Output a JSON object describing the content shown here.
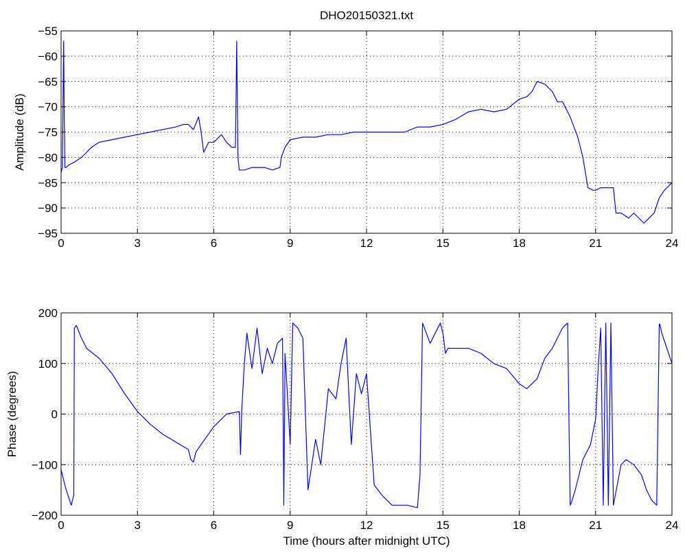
{
  "chart_data": [
    {
      "type": "line",
      "title": "DHO20150321.txt",
      "xlabel": "",
      "ylabel": "Amplitude (dB)",
      "xlim": [
        0,
        24
      ],
      "ylim": [
        -95,
        -55
      ],
      "xticks": [
        0,
        3,
        6,
        9,
        12,
        15,
        18,
        21,
        24
      ],
      "yticks": [
        -55,
        -60,
        -65,
        -70,
        -75,
        -80,
        -85,
        -90,
        -95
      ],
      "grid": true,
      "color": "#0000ff",
      "x": [
        0,
        0.05,
        0.1,
        0.12,
        0.15,
        0.2,
        0.3,
        0.5,
        0.8,
        1.0,
        1.2,
        1.5,
        2.0,
        2.5,
        3.0,
        3.5,
        4.0,
        4.5,
        4.8,
        5.0,
        5.2,
        5.4,
        5.5,
        5.6,
        5.8,
        6.0,
        6.3,
        6.5,
        6.7,
        6.85,
        6.9,
        6.95,
        7.0,
        7.2,
        7.5,
        8.0,
        8.3,
        8.6,
        8.65,
        8.8,
        9.0,
        9.5,
        10.0,
        10.5,
        11.0,
        11.5,
        12.0,
        12.5,
        13.0,
        13.5,
        14.0,
        14.5,
        15.0,
        15.5,
        16.0,
        16.5,
        17.0,
        17.5,
        18.0,
        18.3,
        18.5,
        18.7,
        19.0,
        19.3,
        19.5,
        19.7,
        20.0,
        20.3,
        20.5,
        20.7,
        20.9,
        21.0,
        21.2,
        21.5,
        21.7,
        21.8,
        22.0,
        22.3,
        22.5,
        22.7,
        22.9,
        23.1,
        23.3,
        23.5,
        23.7,
        24.0
      ],
      "y": [
        -83,
        -82,
        -57,
        -70,
        -82,
        -82,
        -81.5,
        -81,
        -80,
        -79,
        -78,
        -77,
        -76.5,
        -76,
        -75.5,
        -75,
        -74.5,
        -74,
        -73.5,
        -73.5,
        -74.5,
        -72,
        -75,
        -79,
        -77,
        -77,
        -75.5,
        -77,
        -78,
        -78,
        -57,
        -80,
        -82.5,
        -82.5,
        -82,
        -82,
        -82.5,
        -82,
        -80,
        -78,
        -76.5,
        -76,
        -76,
        -75.5,
        -75.5,
        -75,
        -75,
        -75,
        -75,
        -75,
        -74,
        -74,
        -73.5,
        -72.5,
        -71,
        -70.5,
        -71,
        -70.5,
        -68.5,
        -68,
        -67,
        -65,
        -65.5,
        -67,
        -69,
        -69,
        -72,
        -76,
        -80,
        -86,
        -86.5,
        -86.5,
        -86,
        -86,
        -86,
        -91,
        -91,
        -92,
        -91,
        -92,
        -93,
        -92,
        -91,
        -88,
        -86.5,
        -85
      ]
    },
    {
      "type": "line",
      "title": "",
      "xlabel": "Time (hours after midnight UTC)",
      "ylabel": "Phase (degrees)",
      "xlim": [
        0,
        24
      ],
      "ylim": [
        -200,
        200
      ],
      "xticks": [
        0,
        3,
        6,
        9,
        12,
        15,
        18,
        21,
        24
      ],
      "yticks": [
        200,
        100,
        0,
        -100,
        -200
      ],
      "grid": true,
      "color": "#0000ff",
      "x": [
        0,
        0.1,
        0.2,
        0.3,
        0.4,
        0.5,
        0.52,
        0.6,
        0.8,
        1.0,
        1.5,
        2.0,
        2.5,
        3.0,
        3.5,
        4.0,
        4.5,
        5.0,
        5.1,
        5.2,
        5.3,
        5.5,
        6.0,
        6.5,
        7.0,
        7.05,
        7.1,
        7.2,
        7.3,
        7.5,
        7.7,
        7.9,
        8.1,
        8.3,
        8.5,
        8.7,
        8.75,
        8.8,
        9.0,
        9.1,
        9.3,
        9.5,
        9.7,
        10.0,
        10.2,
        10.5,
        10.8,
        11.0,
        11.2,
        11.4,
        11.6,
        11.8,
        12.0,
        12.3,
        12.6,
        12.8,
        13.0,
        13.3,
        13.6,
        14.0,
        14.1,
        14.2,
        14.5,
        14.9,
        15.0,
        15.1,
        15.2,
        15.3,
        15.4,
        15.6,
        16.0,
        16.5,
        17.0,
        17.5,
        18.0,
        18.3,
        18.5,
        18.7,
        19.0,
        19.3,
        19.5,
        19.7,
        19.9,
        20.0,
        20.05,
        20.2,
        20.5,
        20.8,
        21.0,
        21.1,
        21.2,
        21.3,
        21.4,
        21.5,
        21.6,
        21.7,
        22.0,
        22.2,
        22.5,
        22.8,
        23.0,
        23.2,
        23.4,
        23.5,
        23.52,
        23.6,
        24.0
      ],
      "y": [
        -110,
        -130,
        -150,
        -165,
        -180,
        -160,
        170,
        175,
        150,
        130,
        110,
        80,
        40,
        5,
        -20,
        -40,
        -55,
        -70,
        -90,
        -95,
        -75,
        -60,
        -25,
        0,
        5,
        -80,
        10,
        100,
        160,
        90,
        170,
        80,
        130,
        100,
        140,
        150,
        -180,
        120,
        -60,
        180,
        170,
        150,
        -150,
        -50,
        -100,
        50,
        30,
        100,
        150,
        -60,
        80,
        40,
        80,
        -140,
        -160,
        -170,
        -180,
        -180,
        -180,
        -185,
        -120,
        180,
        140,
        180,
        160,
        120,
        130,
        130,
        130,
        130,
        130,
        120,
        100,
        90,
        60,
        50,
        60,
        70,
        110,
        130,
        150,
        170,
        180,
        -180,
        -175,
        -150,
        -90,
        -60,
        -10,
        90,
        170,
        -180,
        180,
        -180,
        180,
        -180,
        -100,
        -90,
        -100,
        -120,
        -150,
        -170,
        -180,
        178,
        178,
        160,
        100
      ]
    }
  ]
}
